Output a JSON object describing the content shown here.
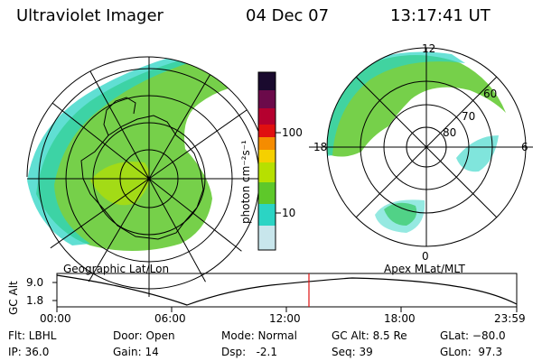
{
  "header": {
    "instrument": "Ultraviolet Imager",
    "date": "04 Dec 07",
    "time": "13:17:41 UT"
  },
  "left_panel": {
    "label": "Geographic Lat/Lon"
  },
  "right_panel": {
    "label": "Apex MLat/MLT",
    "mlt_labels": {
      "top": "12",
      "left": "18",
      "right": "6",
      "bottom": "0"
    },
    "lat_labels": [
      "60",
      "70",
      "80"
    ]
  },
  "colorbar": {
    "unit": "photon cm⁻²s⁻¹",
    "ticks": [
      "100",
      "10"
    ],
    "colors": [
      "#1a0a2e",
      "#6b0a4a",
      "#b5002f",
      "#e01010",
      "#f58c00",
      "#f5d000",
      "#b7e000",
      "#5ec82a",
      "#2bd4c4",
      "#c8e6ec"
    ]
  },
  "altitude_plot": {
    "ylabel": "GC Alt",
    "yticks": [
      "9.0",
      "1.8"
    ],
    "xticks": [
      "00:00",
      "06:00",
      "12:00",
      "18:00",
      "23:59"
    ],
    "current_time_color": "#e01010"
  },
  "status": {
    "flt": "Flt: LBHL",
    "ip": "IP: 36.0",
    "door": "Door: Open",
    "gain": "Gain: 14",
    "mode": "Mode: Normal",
    "dsp": "Dsp:   -2.1",
    "gc_alt": "GC Alt: 8.5 Re",
    "seq": "Seq: 39",
    "glat": "GLat: −80.0",
    "glon": "GLon:  97.3"
  }
}
